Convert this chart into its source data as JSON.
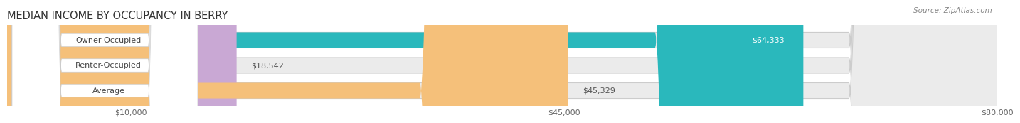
{
  "title": "MEDIAN INCOME BY OCCUPANCY IN BERRY",
  "source": "Source: ZipAtlas.com",
  "categories": [
    "Owner-Occupied",
    "Renter-Occupied",
    "Average"
  ],
  "values": [
    64333,
    18542,
    45329
  ],
  "labels": [
    "$64,333",
    "$18,542",
    "$45,329"
  ],
  "label_inside": [
    true,
    false,
    false
  ],
  "bar_colors": [
    "#2ab8bc",
    "#c9a8d4",
    "#f5c07a"
  ],
  "bar_bg_color": "#ebebeb",
  "xmin": 0,
  "xmax": 80000,
  "xticks": [
    10000,
    45000,
    80000
  ],
  "xtick_labels": [
    "$10,000",
    "$45,000",
    "$80,000"
  ],
  "title_fontsize": 10.5,
  "source_fontsize": 7.5,
  "label_fontsize": 8,
  "category_fontsize": 8,
  "bar_height": 0.62,
  "background_color": "#ffffff",
  "grid_color": "#d0d0d0",
  "inside_label_color": "#ffffff",
  "outside_label_color": "#555555"
}
